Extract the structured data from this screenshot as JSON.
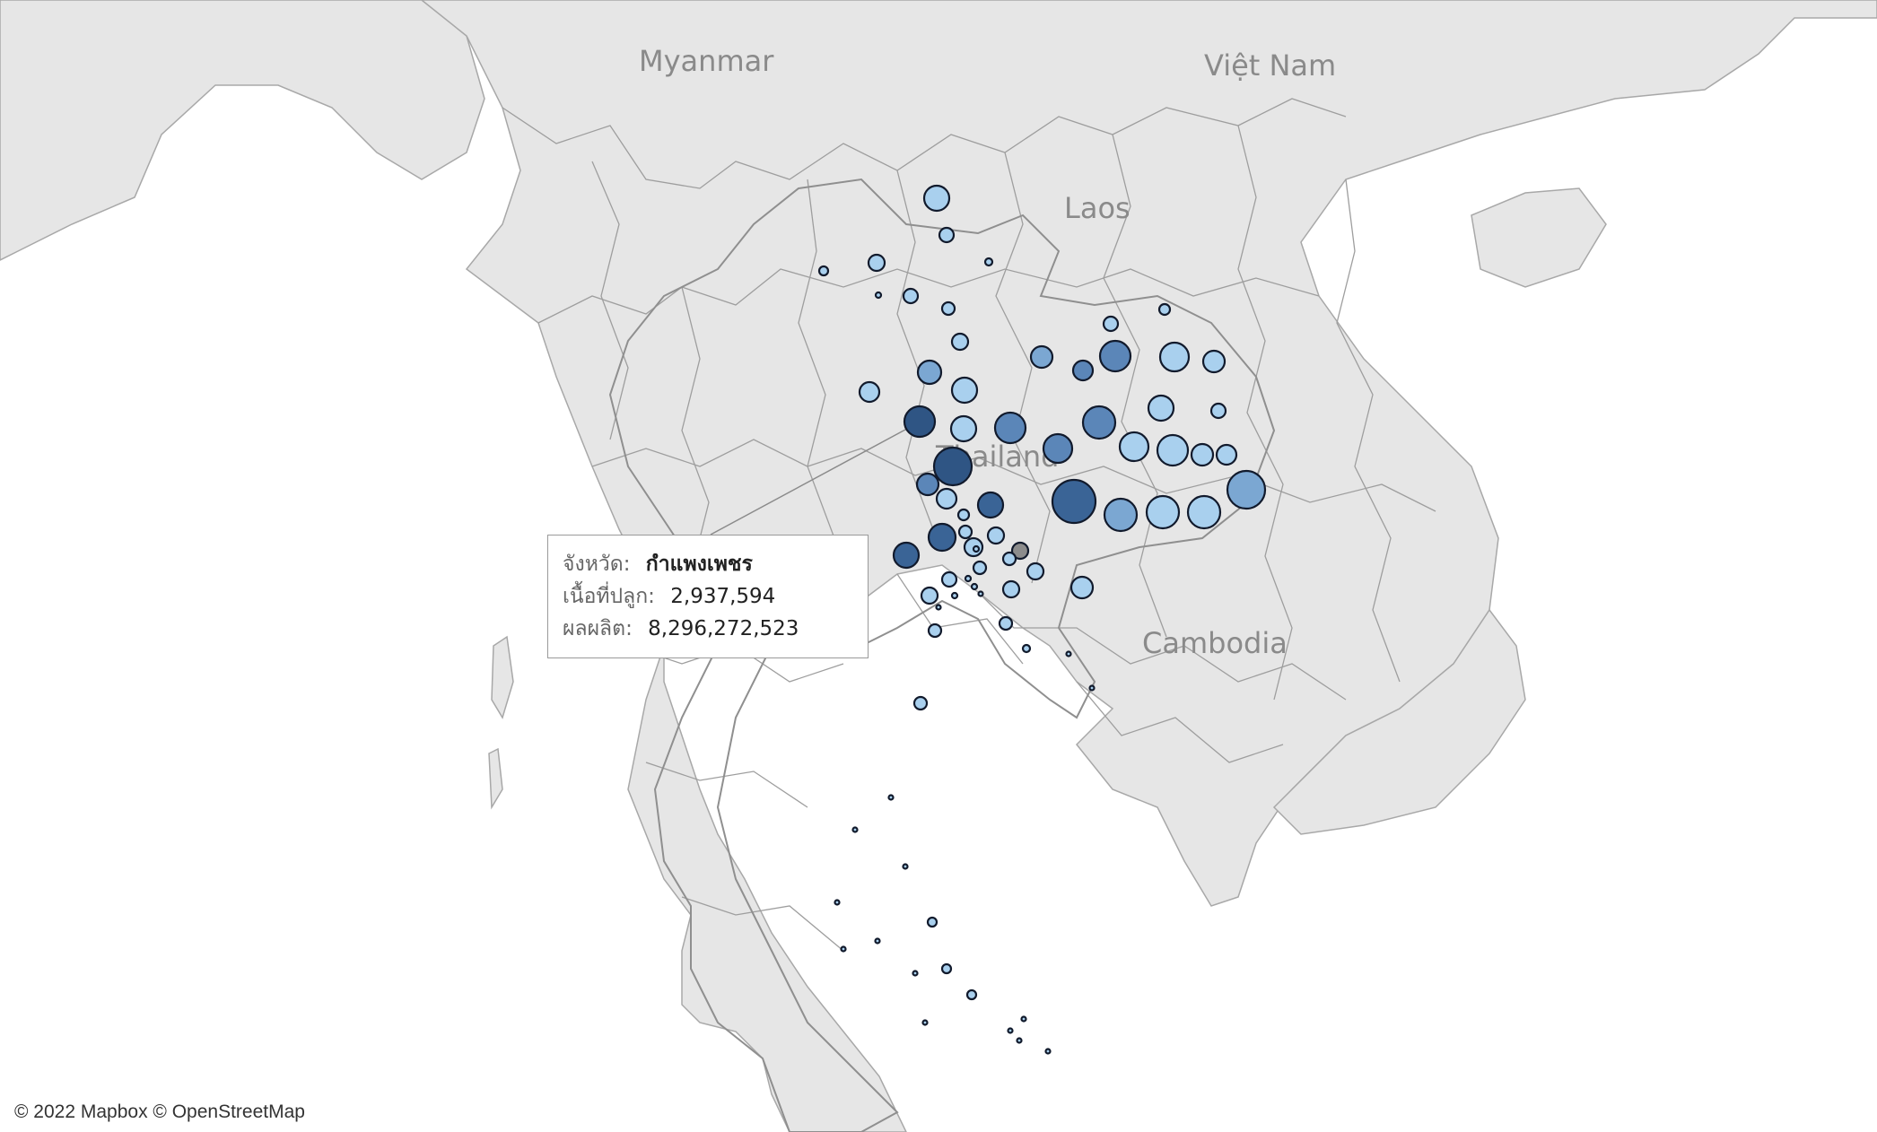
{
  "map": {
    "country_labels": {
      "myanmar": "Myanmar",
      "vietnam": "Việt Nam",
      "laos": "Laos",
      "thailand": "Thailand",
      "cambodia": "Cambodia"
    },
    "attribution": "© 2022 Mapbox © OpenStreetMap",
    "colors": {
      "land": "#e6e6e6",
      "water": "#ffffff",
      "border": "#9c9c9c",
      "bubble_light": "#a9d0ee",
      "bubble_mid": "#7ba7d2",
      "bubble_dark": "#2f5584",
      "bubble_stroke": "#111a2c",
      "highlight": "#8c8c8c"
    }
  },
  "tooltip": {
    "province_label": "จังหวัด:",
    "province_value": "กำแพงเพชร",
    "area_label": "เนื้อที่ปลูก:",
    "area_value": "2,937,594",
    "production_label": "ผลผลิต:",
    "production_value": "8,296,272,523"
  }
}
